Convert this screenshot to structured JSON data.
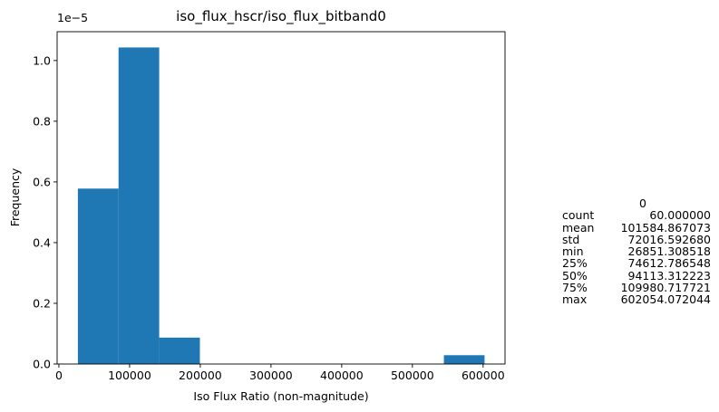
{
  "chart_data": {
    "type": "bar",
    "title": "iso_flux_hscr/iso_flux_bitband0",
    "xlabel": "Iso Flux Ratio (non-magnitude)",
    "ylabel": "Frequency",
    "y_scale_label": "1e−5",
    "y_multiplier": 1e-05,
    "xlim": [
      -2500,
      631000
    ],
    "ylim": [
      0,
      1.095
    ],
    "x_ticks": [
      0,
      100000,
      200000,
      300000,
      400000,
      500000,
      600000
    ],
    "x_tick_labels": [
      "0",
      "100000",
      "200000",
      "300000",
      "400000",
      "500000",
      "600000"
    ],
    "y_ticks": [
      0.0,
      0.2,
      0.4,
      0.6,
      0.8,
      1.0
    ],
    "y_tick_labels": [
      "0.0",
      "0.2",
      "0.4",
      "0.6",
      "0.8",
      "1.0"
    ],
    "bar_color": "#1f77b4",
    "grid": false,
    "bins": [
      {
        "x0": 26851.3,
        "x1": 84371.6,
        "value": 0.578
      },
      {
        "x0": 84371.6,
        "x1": 141891.9,
        "value": 1.043
      },
      {
        "x0": 141891.9,
        "x1": 199412.1,
        "value": 0.087
      },
      {
        "x0": 199412.1,
        "x1": 256932.4,
        "value": 0
      },
      {
        "x0": 256932.4,
        "x1": 314452.7,
        "value": 0
      },
      {
        "x0": 314452.7,
        "x1": 371973.0,
        "value": 0
      },
      {
        "x0": 371973.0,
        "x1": 429493.2,
        "value": 0
      },
      {
        "x0": 429493.2,
        "x1": 487013.5,
        "value": 0
      },
      {
        "x0": 487013.5,
        "x1": 544533.8,
        "value": 0
      },
      {
        "x0": 544533.8,
        "x1": 602054.1,
        "value": 0.029
      }
    ]
  },
  "stats": {
    "header": "0",
    "rows": [
      {
        "key": "count",
        "value": "60.000000"
      },
      {
        "key": "mean",
        "value": "101584.867073"
      },
      {
        "key": "std",
        "value": "72016.592680"
      },
      {
        "key": "min",
        "value": "26851.308518"
      },
      {
        "key": "25%",
        "value": "74612.786548"
      },
      {
        "key": "50%",
        "value": "94113.312223"
      },
      {
        "key": "75%",
        "value": "109980.717721"
      },
      {
        "key": "max",
        "value": "602054.072044"
      }
    ]
  }
}
